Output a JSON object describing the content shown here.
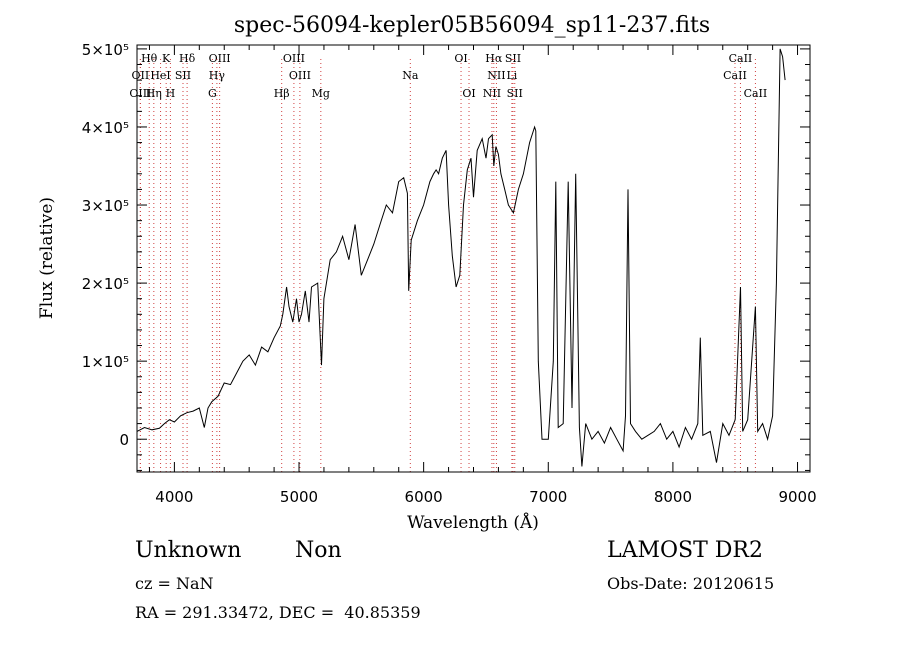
{
  "chart_data": {
    "type": "line",
    "title": "spec-56094-kepler05B56094_sp11-237.fits",
    "xlabel": "Wavelength (Å)",
    "ylabel": "Flux (relative)",
    "xlim": [
      3700,
      9100
    ],
    "ylim": [
      -42000,
      505000
    ],
    "x_ticks": [
      4000,
      5000,
      6000,
      7000,
      8000,
      9000
    ],
    "y_ticks": [
      {
        "value": 0,
        "label": "0"
      },
      {
        "value": 100000,
        "label": "1×10⁵"
      },
      {
        "value": 200000,
        "label": "2×10⁵"
      },
      {
        "value": 300000,
        "label": "3×10⁵"
      },
      {
        "value": 400000,
        "label": "4×10⁵"
      },
      {
        "value": 500000,
        "label": "5×10⁵"
      }
    ],
    "grid": false,
    "series": [
      {
        "points": [
          [
            3700,
            10000
          ],
          [
            3760,
            15000
          ],
          [
            3820,
            12000
          ],
          [
            3880,
            14000
          ],
          [
            3920,
            20000
          ],
          [
            3960,
            25000
          ],
          [
            4000,
            22000
          ],
          [
            4050,
            30000
          ],
          [
            4100,
            34000
          ],
          [
            4150,
            36000
          ],
          [
            4200,
            40000
          ],
          [
            4240,
            15000
          ],
          [
            4270,
            40000
          ],
          [
            4300,
            48000
          ],
          [
            4350,
            55000
          ],
          [
            4400,
            72000
          ],
          [
            4450,
            70000
          ],
          [
            4500,
            85000
          ],
          [
            4550,
            100000
          ],
          [
            4600,
            108000
          ],
          [
            4650,
            95000
          ],
          [
            4700,
            118000
          ],
          [
            4750,
            112000
          ],
          [
            4800,
            130000
          ],
          [
            4850,
            145000
          ],
          [
            4870,
            160000
          ],
          [
            4900,
            195000
          ],
          [
            4920,
            170000
          ],
          [
            4950,
            150000
          ],
          [
            4980,
            180000
          ],
          [
            5000,
            150000
          ],
          [
            5020,
            160000
          ],
          [
            5050,
            190000
          ],
          [
            5080,
            150000
          ],
          [
            5100,
            195000
          ],
          [
            5150,
            200000
          ],
          [
            5180,
            95000
          ],
          [
            5200,
            180000
          ],
          [
            5250,
            230000
          ],
          [
            5300,
            240000
          ],
          [
            5350,
            260000
          ],
          [
            5400,
            230000
          ],
          [
            5450,
            275000
          ],
          [
            5500,
            210000
          ],
          [
            5550,
            230000
          ],
          [
            5600,
            250000
          ],
          [
            5650,
            275000
          ],
          [
            5700,
            300000
          ],
          [
            5750,
            290000
          ],
          [
            5800,
            330000
          ],
          [
            5840,
            335000
          ],
          [
            5870,
            315000
          ],
          [
            5880,
            190000
          ],
          [
            5900,
            255000
          ],
          [
            5950,
            280000
          ],
          [
            6000,
            300000
          ],
          [
            6050,
            330000
          ],
          [
            6080,
            340000
          ],
          [
            6100,
            345000
          ],
          [
            6120,
            340000
          ],
          [
            6150,
            360000
          ],
          [
            6180,
            370000
          ],
          [
            6200,
            300000
          ],
          [
            6230,
            235000
          ],
          [
            6260,
            195000
          ],
          [
            6290,
            210000
          ],
          [
            6320,
            300000
          ],
          [
            6350,
            345000
          ],
          [
            6380,
            360000
          ],
          [
            6400,
            310000
          ],
          [
            6430,
            370000
          ],
          [
            6470,
            385000
          ],
          [
            6500,
            360000
          ],
          [
            6520,
            385000
          ],
          [
            6550,
            390000
          ],
          [
            6563,
            350000
          ],
          [
            6580,
            375000
          ],
          [
            6600,
            365000
          ],
          [
            6620,
            340000
          ],
          [
            6650,
            320000
          ],
          [
            6680,
            300000
          ],
          [
            6720,
            290000
          ],
          [
            6760,
            320000
          ],
          [
            6800,
            340000
          ],
          [
            6850,
            380000
          ],
          [
            6890,
            400000
          ],
          [
            6900,
            395000
          ],
          [
            6920,
            100000
          ],
          [
            6950,
            0
          ],
          [
            7000,
            0
          ],
          [
            7040,
            100000
          ],
          [
            7060,
            330000
          ],
          [
            7080,
            15000
          ],
          [
            7120,
            20000
          ],
          [
            7160,
            330000
          ],
          [
            7190,
            40000
          ],
          [
            7220,
            340000
          ],
          [
            7250,
            15000
          ],
          [
            7270,
            -35000
          ],
          [
            7300,
            20000
          ],
          [
            7350,
            0
          ],
          [
            7400,
            10000
          ],
          [
            7450,
            -5000
          ],
          [
            7500,
            15000
          ],
          [
            7550,
            0
          ],
          [
            7600,
            -15000
          ],
          [
            7620,
            30000
          ],
          [
            7640,
            320000
          ],
          [
            7660,
            20000
          ],
          [
            7700,
            10000
          ],
          [
            7750,
            0
          ],
          [
            7800,
            5000
          ],
          [
            7850,
            10000
          ],
          [
            7900,
            20000
          ],
          [
            7950,
            0
          ],
          [
            8000,
            10000
          ],
          [
            8050,
            -10000
          ],
          [
            8100,
            15000
          ],
          [
            8150,
            0
          ],
          [
            8200,
            20000
          ],
          [
            8220,
            130000
          ],
          [
            8240,
            5000
          ],
          [
            8300,
            10000
          ],
          [
            8350,
            -30000
          ],
          [
            8400,
            20000
          ],
          [
            8450,
            5000
          ],
          [
            8500,
            25000
          ],
          [
            8542,
            195000
          ],
          [
            8560,
            10000
          ],
          [
            8600,
            25000
          ],
          [
            8662,
            170000
          ],
          [
            8680,
            10000
          ],
          [
            8720,
            20000
          ],
          [
            8760,
            0
          ],
          [
            8800,
            30000
          ],
          [
            8830,
            200000
          ],
          [
            8860,
            500000
          ],
          [
            8880,
            490000
          ],
          [
            8900,
            460000
          ]
        ]
      }
    ],
    "line_markers": [
      {
        "label": "Hθ",
        "x": 3798,
        "row": 0
      },
      {
        "label": "K",
        "x": 3934,
        "row": 0
      },
      {
        "label": "Hδ",
        "x": 4102,
        "row": 0
      },
      {
        "label": "OIII",
        "x": 4363,
        "row": 0
      },
      {
        "label": "OIII",
        "x": 4959,
        "row": 0
      },
      {
        "label": "OI",
        "x": 6300,
        "row": 0
      },
      {
        "label": "Hα",
        "x": 6563,
        "row": 0
      },
      {
        "label": "SII",
        "x": 6717,
        "row": 0
      },
      {
        "label": "CaII",
        "x": 8542,
        "row": 0
      },
      {
        "label": "OII",
        "x": 3727,
        "row": 1
      },
      {
        "label": "HeI",
        "x": 3889,
        "row": 1
      },
      {
        "label": "SII",
        "x": 4069,
        "row": 1
      },
      {
        "label": "Hγ",
        "x": 4341,
        "row": 1
      },
      {
        "label": "OIII",
        "x": 5007,
        "row": 1
      },
      {
        "label": "Na",
        "x": 5893,
        "row": 1
      },
      {
        "label": "NII",
        "x": 6584,
        "row": 1
      },
      {
        "label": "Li",
        "x": 6708,
        "row": 1
      },
      {
        "label": "CaII",
        "x": 8498,
        "row": 1
      },
      {
        "label": "OIII",
        "x": 3727,
        "row": 2
      },
      {
        "label": "Hη",
        "x": 3835,
        "row": 2
      },
      {
        "label": "H",
        "x": 3968,
        "row": 2
      },
      {
        "label": "G",
        "x": 4305,
        "row": 2
      },
      {
        "label": "Hβ",
        "x": 4861,
        "row": 2
      },
      {
        "label": "Mg",
        "x": 5175,
        "row": 2
      },
      {
        "label": "OI",
        "x": 6364,
        "row": 2
      },
      {
        "label": "NII",
        "x": 6548,
        "row": 2
      },
      {
        "label": "SII",
        "x": 6731,
        "row": 2
      },
      {
        "label": "CaII",
        "x": 8662,
        "row": 2
      }
    ],
    "colors": {
      "spectrum": "#000000",
      "marker_lines": "#d04040",
      "axes": "#000000"
    }
  },
  "info": {
    "class": "Unknown",
    "subclass": "Non",
    "survey": "LAMOST DR2",
    "cz": "cz = NaN",
    "obs_date": "Obs-Date: 20120615",
    "coords": "RA = 291.33472, DEC =  40.85359"
  }
}
